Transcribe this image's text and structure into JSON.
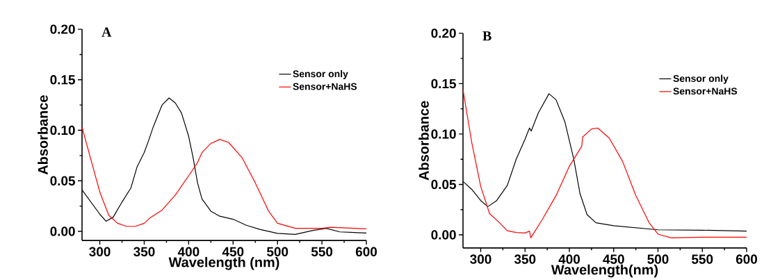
{
  "chart_data": [
    {
      "type": "line",
      "title": "A",
      "xlabel": "Wavelength (nm)",
      "ylabel": "Absorbance",
      "xlim": [
        280,
        600
      ],
      "ylim": [
        -0.009,
        0.2
      ],
      "xticks": [
        300,
        350,
        400,
        450,
        500,
        550,
        600
      ],
      "yticks": [
        {
          "value": 0,
          "label": "0.00"
        },
        {
          "value": 0.05,
          "label": "0.05"
        },
        {
          "value": 0.1,
          "label": "0.10"
        },
        {
          "value": 0.15,
          "label": "0.15"
        },
        {
          "value": 0.2,
          "label": "0.20"
        }
      ],
      "grid": false,
      "legend": "top right",
      "marker": "none",
      "line_style": "solid",
      "series": [
        {
          "name": "Sensor only",
          "color": "#000000",
          "x": [
            280,
            290,
            300,
            307,
            315,
            325,
            335,
            342,
            350,
            355,
            360,
            370,
            378,
            385,
            392,
            400,
            405,
            410,
            415,
            425,
            435,
            450,
            465,
            480,
            500,
            520,
            540,
            555,
            570,
            600
          ],
          "values": [
            0.041,
            0.029,
            0.017,
            0.01,
            0.014,
            0.029,
            0.043,
            0.064,
            0.078,
            0.09,
            0.103,
            0.125,
            0.132,
            0.127,
            0.117,
            0.094,
            0.073,
            0.048,
            0.032,
            0.02,
            0.015,
            0.012,
            0.006,
            0.002,
            -0.002,
            -0.003,
            0.001,
            0.003,
            -0.0005,
            -0.0016
          ]
        },
        {
          "name": "Sensor+NaHS",
          "color": "#ff0000",
          "x": [
            280,
            290,
            300,
            310,
            320,
            330,
            340,
            350,
            356,
            370,
            385,
            400,
            410,
            415,
            425,
            435,
            445,
            460,
            475,
            490,
            500,
            520,
            550,
            560,
            600
          ],
          "values": [
            0.103,
            0.071,
            0.039,
            0.016,
            0.008,
            0.005,
            0.005,
            0.008,
            0.013,
            0.021,
            0.036,
            0.055,
            0.068,
            0.078,
            0.087,
            0.091,
            0.088,
            0.073,
            0.048,
            0.02,
            0.008,
            0.003,
            0.003,
            0.004,
            0.0025
          ]
        }
      ]
    },
    {
      "type": "line",
      "title": "B",
      "xlabel": "Wavelength(nm)",
      "ylabel": "Absorbance",
      "xlim": [
        280,
        600
      ],
      "ylim": [
        -0.013,
        0.2
      ],
      "xticks": [
        300,
        350,
        400,
        450,
        500,
        550,
        600
      ],
      "yticks": [
        {
          "value": 0,
          "label": "0.00"
        },
        {
          "value": 0.05,
          "label": "0.05"
        },
        {
          "value": 0.1,
          "label": "0.10"
        },
        {
          "value": 0.15,
          "label": "0.15"
        },
        {
          "value": 0.2,
          "label": "0.20"
        }
      ],
      "grid": false,
      "legend": "top right",
      "marker": "none",
      "line_style": "solid",
      "series": [
        {
          "name": "Sensor only",
          "color": "#000000",
          "x": [
            280,
            290,
            300,
            308,
            318,
            330,
            340,
            350,
            355,
            357,
            365,
            377,
            385,
            395,
            405,
            412,
            420,
            430,
            450,
            500,
            550,
            600
          ],
          "values": [
            0.053,
            0.045,
            0.034,
            0.028,
            0.034,
            0.049,
            0.075,
            0.095,
            0.106,
            0.103,
            0.121,
            0.14,
            0.134,
            0.112,
            0.075,
            0.041,
            0.02,
            0.012,
            0.009,
            0.005,
            0.0046,
            0.0037
          ]
        },
        {
          "name": "Sensor+NaHS",
          "color": "#ff0000",
          "x": [
            280,
            290,
            300,
            310,
            320,
            330,
            340,
            350,
            355,
            356.5,
            370,
            385,
            400,
            414,
            415,
            425,
            432,
            445,
            460,
            475,
            490,
            500,
            515,
            550,
            600
          ],
          "values": [
            0.144,
            0.091,
            0.048,
            0.021,
            0.013,
            0.004,
            0.0023,
            0.0018,
            0.0037,
            -0.003,
            0.016,
            0.039,
            0.068,
            0.088,
            0.097,
            0.105,
            0.106,
            0.096,
            0.073,
            0.039,
            0.012,
            0.0007,
            -0.003,
            -0.0023,
            -0.0023
          ]
        }
      ]
    }
  ]
}
